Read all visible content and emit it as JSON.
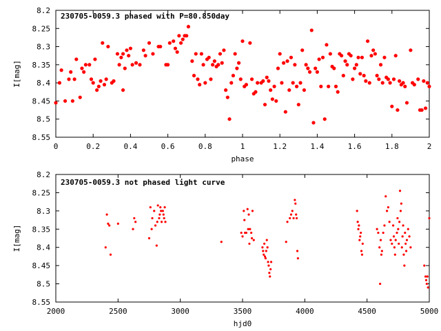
{
  "chart_data": [
    {
      "type": "scatter",
      "title": "230705-0059.3 phased with P=80.850day",
      "xlabel": "phase",
      "ylabel": "I[mag]",
      "xlim": [
        0,
        2
      ],
      "ylim": [
        8.55,
        8.2
      ],
      "y_inverted": true,
      "xticks": [
        "0",
        "0.2",
        "0.4",
        "0.6",
        "0.8",
        "1",
        "1.2",
        "1.4",
        "1.6",
        "1.8",
        "2"
      ],
      "yticks": [
        "8.2",
        "8.25",
        "8.3",
        "8.35",
        "8.4",
        "8.45",
        "8.5",
        "8.55"
      ],
      "marker_color": "#ff0000",
      "marker": "filled-circle-large",
      "grid": false,
      "points": [
        [
          0.0,
          8.455
        ],
        [
          0.02,
          8.4
        ],
        [
          0.03,
          8.365
        ],
        [
          0.05,
          8.45
        ],
        [
          0.07,
          8.39
        ],
        [
          0.08,
          8.37
        ],
        [
          0.09,
          8.45
        ],
        [
          0.1,
          8.39
        ],
        [
          0.11,
          8.335
        ],
        [
          0.13,
          8.44
        ],
        [
          0.14,
          8.36
        ],
        [
          0.15,
          8.37
        ],
        [
          0.16,
          8.35
        ],
        [
          0.18,
          8.35
        ],
        [
          0.19,
          8.39
        ],
        [
          0.2,
          8.4
        ],
        [
          0.21,
          8.335
        ],
        [
          0.22,
          8.42
        ],
        [
          0.23,
          8.41
        ],
        [
          0.24,
          8.395
        ],
        [
          0.25,
          8.29
        ],
        [
          0.26,
          8.405
        ],
        [
          0.27,
          8.39
        ],
        [
          0.28,
          8.3
        ],
        [
          0.3,
          8.4
        ],
        [
          0.31,
          8.395
        ],
        [
          0.33,
          8.32
        ],
        [
          0.34,
          8.35
        ],
        [
          0.35,
          8.33
        ],
        [
          0.36,
          8.32
        ],
        [
          0.36,
          8.42
        ],
        [
          0.37,
          8.36
        ],
        [
          0.38,
          8.31
        ],
        [
          0.39,
          8.325
        ],
        [
          0.4,
          8.305
        ],
        [
          0.41,
          8.35
        ],
        [
          0.43,
          8.345
        ],
        [
          0.45,
          8.35
        ],
        [
          0.47,
          8.31
        ],
        [
          0.48,
          8.325
        ],
        [
          0.5,
          8.29
        ],
        [
          0.52,
          8.32
        ],
        [
          0.55,
          8.3
        ],
        [
          0.56,
          8.3
        ],
        [
          0.59,
          8.35
        ],
        [
          0.6,
          8.35
        ],
        [
          0.61,
          8.29
        ],
        [
          0.63,
          8.285
        ],
        [
          0.64,
          8.305
        ],
        [
          0.65,
          8.315
        ],
        [
          0.66,
          8.27
        ],
        [
          0.67,
          8.29
        ],
        [
          0.68,
          8.28
        ],
        [
          0.69,
          8.27
        ],
        [
          0.7,
          8.27
        ],
        [
          0.71,
          8.245
        ],
        [
          0.73,
          8.34
        ],
        [
          0.74,
          8.38
        ],
        [
          0.75,
          8.32
        ],
        [
          0.76,
          8.39
        ],
        [
          0.77,
          8.405
        ],
        [
          0.78,
          8.32
        ],
        [
          0.79,
          8.35
        ],
        [
          0.8,
          8.4
        ],
        [
          0.81,
          8.335
        ],
        [
          0.82,
          8.33
        ],
        [
          0.83,
          8.39
        ],
        [
          0.84,
          8.35
        ],
        [
          0.85,
          8.34
        ],
        [
          0.86,
          8.355
        ],
        [
          0.87,
          8.35
        ],
        [
          0.88,
          8.32
        ],
        [
          0.89,
          8.345
        ],
        [
          0.9,
          8.31
        ],
        [
          0.91,
          8.42
        ],
        [
          0.92,
          8.44
        ],
        [
          0.93,
          8.5
        ],
        [
          0.94,
          8.4
        ],
        [
          0.95,
          8.38
        ],
        [
          0.96,
          8.32
        ],
        [
          0.97,
          8.36
        ],
        [
          0.98,
          8.345
        ],
        [
          0.99,
          8.39
        ],
        [
          1.0,
          8.285
        ],
        [
          1.01,
          8.41
        ],
        [
          1.02,
          8.405
        ],
        [
          1.04,
          8.29
        ],
        [
          1.05,
          8.39
        ],
        [
          1.06,
          8.43
        ],
        [
          1.07,
          8.425
        ],
        [
          1.08,
          8.4
        ],
        [
          1.1,
          8.4
        ],
        [
          1.11,
          8.395
        ],
        [
          1.12,
          8.46
        ],
        [
          1.13,
          8.385
        ],
        [
          1.14,
          8.395
        ],
        [
          1.15,
          8.42
        ],
        [
          1.16,
          8.445
        ],
        [
          1.17,
          8.41
        ],
        [
          1.18,
          8.45
        ],
        [
          1.19,
          8.36
        ],
        [
          1.2,
          8.32
        ],
        [
          1.21,
          8.4
        ],
        [
          1.22,
          8.345
        ],
        [
          1.23,
          8.48
        ],
        [
          1.24,
          8.34
        ],
        [
          1.25,
          8.42
        ],
        [
          1.26,
          8.33
        ],
        [
          1.27,
          8.4
        ],
        [
          1.28,
          8.35
        ],
        [
          1.29,
          8.41
        ],
        [
          1.3,
          8.46
        ],
        [
          1.31,
          8.4
        ],
        [
          1.32,
          8.31
        ],
        [
          1.33,
          8.42
        ],
        [
          1.34,
          8.35
        ],
        [
          1.35,
          8.36
        ],
        [
          1.36,
          8.37
        ],
        [
          1.37,
          8.255
        ],
        [
          1.38,
          8.51
        ],
        [
          1.39,
          8.36
        ],
        [
          1.4,
          8.37
        ],
        [
          1.41,
          8.335
        ],
        [
          1.42,
          8.41
        ],
        [
          1.43,
          8.33
        ],
        [
          1.44,
          8.5
        ],
        [
          1.45,
          8.295
        ],
        [
          1.46,
          8.41
        ],
        [
          1.47,
          8.32
        ],
        [
          1.48,
          8.355
        ],
        [
          1.49,
          8.36
        ],
        [
          1.5,
          8.41
        ],
        [
          1.51,
          8.425
        ],
        [
          1.52,
          8.32
        ],
        [
          1.53,
          8.325
        ],
        [
          1.54,
          8.38
        ],
        [
          1.55,
          8.34
        ],
        [
          1.56,
          8.35
        ],
        [
          1.57,
          8.32
        ],
        [
          1.58,
          8.325
        ],
        [
          1.59,
          8.39
        ],
        [
          1.6,
          8.36
        ],
        [
          1.61,
          8.35
        ],
        [
          1.62,
          8.33
        ],
        [
          1.63,
          8.375
        ],
        [
          1.64,
          8.33
        ],
        [
          1.65,
          8.38
        ],
        [
          1.66,
          8.395
        ],
        [
          1.67,
          8.285
        ],
        [
          1.68,
          8.4
        ],
        [
          1.69,
          8.325
        ],
        [
          1.7,
          8.31
        ],
        [
          1.71,
          8.32
        ],
        [
          1.72,
          8.38
        ],
        [
          1.73,
          8.39
        ],
        [
          1.74,
          8.35
        ],
        [
          1.75,
          8.4
        ],
        [
          1.76,
          8.33
        ],
        [
          1.77,
          8.385
        ],
        [
          1.78,
          8.39
        ],
        [
          1.79,
          8.4
        ],
        [
          1.8,
          8.465
        ],
        [
          1.81,
          8.39
        ],
        [
          1.82,
          8.325
        ],
        [
          1.83,
          8.475
        ],
        [
          1.84,
          8.395
        ],
        [
          1.85,
          8.405
        ],
        [
          1.86,
          8.4
        ],
        [
          1.87,
          8.41
        ],
        [
          1.88,
          8.455
        ],
        [
          1.9,
          8.31
        ],
        [
          1.91,
          8.4
        ],
        [
          1.92,
          8.405
        ],
        [
          1.94,
          8.39
        ],
        [
          1.95,
          8.475
        ],
        [
          1.96,
          8.475
        ],
        [
          1.97,
          8.395
        ],
        [
          1.98,
          8.47
        ],
        [
          1.99,
          8.4
        ],
        [
          2.0,
          8.41
        ]
      ]
    },
    {
      "type": "scatter",
      "title": "230705-0059.3 not phased light curve",
      "xlabel": "hjd0",
      "ylabel": "I[mag]",
      "xlim": [
        2000,
        5000
      ],
      "ylim": [
        8.55,
        8.2
      ],
      "y_inverted": true,
      "xticks": [
        "2000",
        "2500",
        "3000",
        "3500",
        "4000",
        "4500",
        "5000"
      ],
      "yticks": [
        "8.2",
        "8.25",
        "8.3",
        "8.35",
        "8.4",
        "8.45",
        "8.5",
        "8.55"
      ],
      "marker_color": "#ff0000",
      "marker": "filled-circle-small",
      "grid": false,
      "points": [
        [
          2400,
          8.4
        ],
        [
          2410,
          8.31
        ],
        [
          2420,
          8.335
        ],
        [
          2430,
          8.34
        ],
        [
          2440,
          8.42
        ],
        [
          2500,
          8.335
        ],
        [
          2620,
          8.35
        ],
        [
          2630,
          8.32
        ],
        [
          2640,
          8.33
        ],
        [
          2750,
          8.375
        ],
        [
          2760,
          8.29
        ],
        [
          2770,
          8.35
        ],
        [
          2775,
          8.32
        ],
        [
          2790,
          8.3
        ],
        [
          2800,
          8.34
        ],
        [
          2810,
          8.395
        ],
        [
          2815,
          8.33
        ],
        [
          2820,
          8.285
        ],
        [
          2830,
          8.32
        ],
        [
          2835,
          8.31
        ],
        [
          2840,
          8.29
        ],
        [
          2845,
          8.3
        ],
        [
          2850,
          8.33
        ],
        [
          2860,
          8.3
        ],
        [
          2865,
          8.31
        ],
        [
          2870,
          8.32
        ],
        [
          2875,
          8.29
        ],
        [
          2880,
          8.33
        ],
        [
          3330,
          8.385
        ],
        [
          3490,
          8.36
        ],
        [
          3500,
          8.37
        ],
        [
          3510,
          8.3
        ],
        [
          3515,
          8.325
        ],
        [
          3520,
          8.36
        ],
        [
          3530,
          8.36
        ],
        [
          3540,
          8.295
        ],
        [
          3545,
          8.35
        ],
        [
          3550,
          8.31
        ],
        [
          3555,
          8.39
        ],
        [
          3560,
          8.35
        ],
        [
          3570,
          8.36
        ],
        [
          3575,
          8.375
        ],
        [
          3580,
          8.3
        ],
        [
          3590,
          8.38
        ],
        [
          3660,
          8.4
        ],
        [
          3665,
          8.41
        ],
        [
          3670,
          8.42
        ],
        [
          3675,
          8.39
        ],
        [
          3680,
          8.425
        ],
        [
          3685,
          8.43
        ],
        [
          3690,
          8.41
        ],
        [
          3695,
          8.38
        ],
        [
          3700,
          8.4
        ],
        [
          3705,
          8.44
        ],
        [
          3710,
          8.45
        ],
        [
          3715,
          8.47
        ],
        [
          3720,
          8.48
        ],
        [
          3725,
          8.46
        ],
        [
          3730,
          8.44
        ],
        [
          3850,
          8.385
        ],
        [
          3860,
          8.33
        ],
        [
          3880,
          8.32
        ],
        [
          3890,
          8.31
        ],
        [
          3900,
          8.3
        ],
        [
          3910,
          8.32
        ],
        [
          3920,
          8.27
        ],
        [
          3925,
          8.28
        ],
        [
          3930,
          8.31
        ],
        [
          3935,
          8.32
        ],
        [
          3940,
          8.41
        ],
        [
          3945,
          8.43
        ],
        [
          4420,
          8.3
        ],
        [
          4425,
          8.33
        ],
        [
          4430,
          8.35
        ],
        [
          4435,
          8.34
        ],
        [
          4440,
          8.38
        ],
        [
          4445,
          8.37
        ],
        [
          4450,
          8.36
        ],
        [
          4455,
          8.41
        ],
        [
          4460,
          8.42
        ],
        [
          4465,
          8.39
        ],
        [
          4580,
          8.35
        ],
        [
          4590,
          8.36
        ],
        [
          4600,
          8.4
        ],
        [
          4605,
          8.5
        ],
        [
          4610,
          8.38
        ],
        [
          4615,
          8.42
        ],
        [
          4620,
          8.41
        ],
        [
          4630,
          8.36
        ],
        [
          4640,
          8.34
        ],
        [
          4650,
          8.26
        ],
        [
          4660,
          8.3
        ],
        [
          4670,
          8.29
        ],
        [
          4680,
          8.33
        ],
        [
          4690,
          8.38
        ],
        [
          4700,
          8.39
        ],
        [
          4710,
          8.34
        ],
        [
          4715,
          8.37
        ],
        [
          4720,
          8.4
        ],
        [
          4725,
          8.42
        ],
        [
          4730,
          8.38
        ],
        [
          4740,
          8.36
        ],
        [
          4745,
          8.32
        ],
        [
          4750,
          8.35
        ],
        [
          4755,
          8.39
        ],
        [
          4760,
          8.33
        ],
        [
          4765,
          8.245
        ],
        [
          4770,
          8.3
        ],
        [
          4775,
          8.28
        ],
        [
          4780,
          8.4
        ],
        [
          4785,
          8.37
        ],
        [
          4790,
          8.34
        ],
        [
          4795,
          8.42
        ],
        [
          4800,
          8.45
        ],
        [
          4805,
          8.36
        ],
        [
          4810,
          8.39
        ],
        [
          4815,
          8.41
        ],
        [
          4820,
          8.38
        ],
        [
          4830,
          8.35
        ],
        [
          4840,
          8.37
        ],
        [
          4850,
          8.4
        ],
        [
          4960,
          8.45
        ],
        [
          4970,
          8.48
        ],
        [
          4975,
          8.49
        ],
        [
          4980,
          8.5
        ],
        [
          4985,
          8.48
        ],
        [
          4990,
          8.51
        ],
        [
          5000,
          8.32
        ]
      ]
    }
  ]
}
